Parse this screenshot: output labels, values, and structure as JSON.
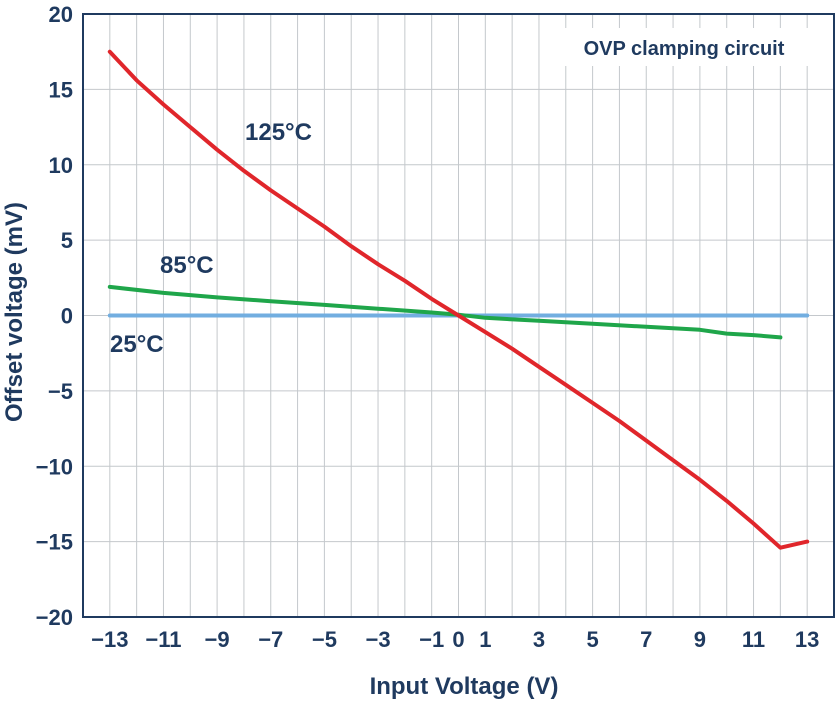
{
  "chart_data": {
    "type": "line",
    "xlabel": "Input Voltage (V)",
    "ylabel": "Offset voltage (mV)",
    "xlim": [
      -14,
      14
    ],
    "ylim": [
      -20,
      20
    ],
    "xticks": [
      -13,
      -11,
      -9,
      -7,
      -5,
      -3,
      -1,
      0,
      1,
      3,
      5,
      7,
      9,
      11,
      13
    ],
    "xtick_labels": [
      "−13",
      "−11",
      "−9",
      "−7",
      "−5",
      "−3",
      "−1",
      "0",
      "1",
      "3",
      "5",
      "7",
      "9",
      "11",
      "13"
    ],
    "yticks": [
      20,
      15,
      10,
      5,
      0,
      -5,
      -10,
      -15,
      -20
    ],
    "ytick_labels": [
      "20",
      "15",
      "10",
      "5",
      "0",
      "−5",
      "−10",
      "−15",
      "−20"
    ],
    "grid": true,
    "annotation_box": "OVP clamping circuit",
    "series": [
      {
        "name": "125°C",
        "color": "#e0262b",
        "x": [
          -13,
          -12,
          -11,
          -10,
          -9,
          -8,
          -7,
          -6,
          -5,
          -4,
          -3,
          -2,
          -1,
          0,
          1,
          2,
          3,
          4,
          5,
          6,
          7,
          8,
          9,
          10,
          11,
          12,
          13
        ],
        "y": [
          17.5,
          15.6,
          14.0,
          12.5,
          11.0,
          9.6,
          8.3,
          7.1,
          5.9,
          4.6,
          3.4,
          2.3,
          1.1,
          0.0,
          -1.1,
          -2.2,
          -3.4,
          -4.6,
          -5.8,
          -7.0,
          -8.3,
          -9.6,
          -10.9,
          -12.3,
          -13.8,
          -15.4,
          -15.0
        ]
      },
      {
        "name": "85°C",
        "color": "#1fa64a",
        "x": [
          -13,
          -11,
          -9,
          -7,
          -5,
          -3,
          -1,
          0,
          1,
          3,
          5,
          7,
          9,
          10,
          11,
          12
        ],
        "y": [
          1.9,
          1.5,
          1.2,
          0.95,
          0.7,
          0.45,
          0.2,
          0.05,
          -0.15,
          -0.35,
          -0.55,
          -0.75,
          -0.95,
          -1.2,
          -1.3,
          -1.45
        ]
      },
      {
        "name": "25°C",
        "color": "#72aee0",
        "x": [
          -13,
          13
        ],
        "y": [
          0.0,
          0.0
        ]
      }
    ]
  }
}
